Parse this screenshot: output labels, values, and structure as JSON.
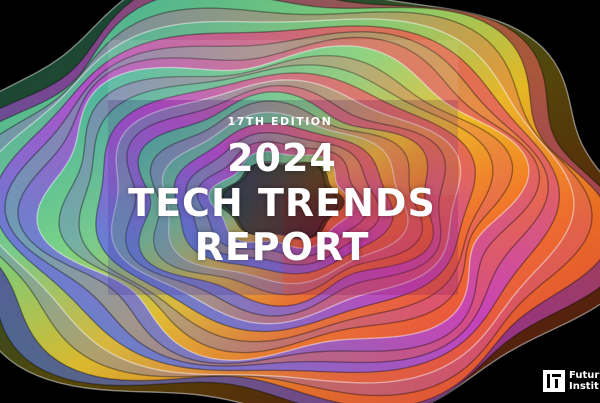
{
  "cover": {
    "edition": "17TH EDITION",
    "title_line1": "2024",
    "title_line2": "TECH TRENDS",
    "title_line3": "REPORT"
  },
  "logo": {
    "line1": "Futur",
    "line2": "Instit"
  },
  "colors": {
    "background": "#000000",
    "quadrant_top_left": "#1fb3a8",
    "quadrant_top_center": "#7be07a",
    "quadrant_top_right": "#f0c81e",
    "quadrant_mid_left": "#8a4bd6",
    "quadrant_center": "#c03fd0",
    "quadrant_mid_right": "#f5731c",
    "quadrant_bottom_left": "#2f8ee6",
    "quadrant_bottom_right": "#e83a3a"
  }
}
